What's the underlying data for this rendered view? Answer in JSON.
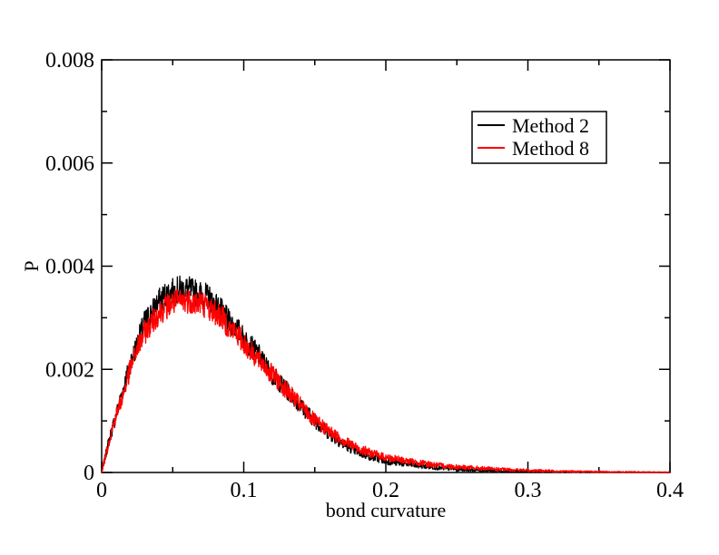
{
  "chart_data": {
    "type": "line",
    "title": "",
    "xlabel": "bond curvature",
    "ylabel": "P",
    "xlim": [
      0,
      0.4
    ],
    "ylim": [
      0,
      0.008
    ],
    "grid": false,
    "legend_position": "top-right",
    "x_ticks": [
      {
        "value": 0,
        "label": "0"
      },
      {
        "value": 0.1,
        "label": "0.1"
      },
      {
        "value": 0.2,
        "label": "0.2"
      },
      {
        "value": 0.3,
        "label": "0.3"
      },
      {
        "value": 0.4,
        "label": "0.4"
      }
    ],
    "y_ticks": [
      {
        "value": 0,
        "label": "0"
      },
      {
        "value": 0.002,
        "label": "0.002"
      },
      {
        "value": 0.004,
        "label": "0.004"
      },
      {
        "value": 0.006,
        "label": "0.006"
      },
      {
        "value": 0.008,
        "label": "0.008"
      }
    ],
    "x": [
      0,
      0.005,
      0.01,
      0.015,
      0.02,
      0.025,
      0.03,
      0.035,
      0.04,
      0.045,
      0.05,
      0.055,
      0.06,
      0.065,
      0.07,
      0.075,
      0.08,
      0.085,
      0.09,
      0.095,
      0.1,
      0.11,
      0.12,
      0.13,
      0.14,
      0.15,
      0.16,
      0.17,
      0.18,
      0.19,
      0.2,
      0.22,
      0.24,
      0.26,
      0.28,
      0.3,
      0.32,
      0.34,
      0.36,
      0.38,
      0.4
    ],
    "series": [
      {
        "name": "Method 2",
        "color": "#000000",
        "values": [
          0,
          0.0006,
          0.0011,
          0.0016,
          0.0021,
          0.0025,
          0.0029,
          0.0031,
          0.0033,
          0.00345,
          0.0035,
          0.00355,
          0.00355,
          0.0035,
          0.00345,
          0.0034,
          0.00325,
          0.0031,
          0.0029,
          0.0028,
          0.0026,
          0.0023,
          0.0019,
          0.0016,
          0.0013,
          0.001,
          0.00075,
          0.00055,
          0.0004,
          0.0003,
          0.00022,
          0.00014,
          8e-05,
          5e-05,
          3e-05,
          2e-05,
          1e-05,
          8e-06,
          5e-06,
          3e-06,
          2e-06
        ]
      },
      {
        "name": "Method 8",
        "color": "#ff0000",
        "values": [
          0,
          0.0006,
          0.0011,
          0.0015,
          0.002,
          0.0024,
          0.0027,
          0.0029,
          0.0031,
          0.0032,
          0.0033,
          0.0033,
          0.00335,
          0.0033,
          0.0033,
          0.0032,
          0.0031,
          0.003,
          0.0028,
          0.0027,
          0.0025,
          0.0022,
          0.0019,
          0.0016,
          0.0013,
          0.001,
          0.0008,
          0.00062,
          0.00047,
          0.00037,
          0.00029,
          0.0002,
          0.00013,
          9e-05,
          6e-05,
          4e-05,
          2.5e-05,
          1.5e-05,
          1e-05,
          6e-06,
          4e-06
        ]
      }
    ]
  }
}
